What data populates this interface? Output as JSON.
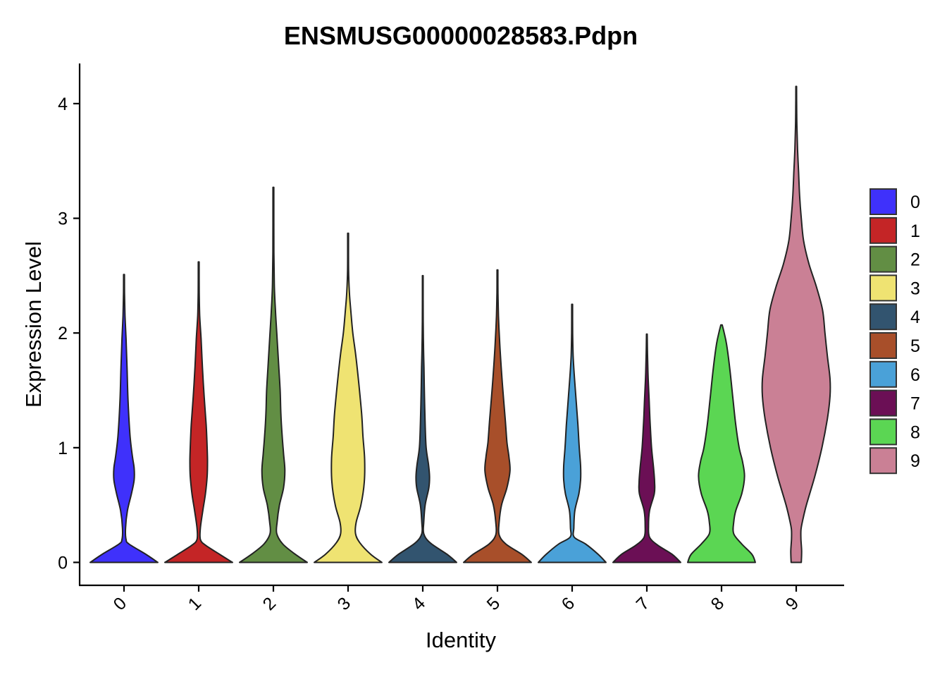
{
  "chart_data": {
    "type": "violin",
    "title": "ENSMUSG00000028583.Pdpn",
    "xlabel": "Identity",
    "ylabel": "Expression Level",
    "ylim": [
      -0.2,
      4.35
    ],
    "yticks": [
      0,
      1,
      2,
      3,
      4
    ],
    "categories": [
      "0",
      "1",
      "2",
      "3",
      "4",
      "5",
      "6",
      "7",
      "8",
      "9"
    ],
    "legend": {
      "position": "right",
      "title": ""
    },
    "grid": false,
    "colors": [
      "#3F31FB",
      "#C42526",
      "#628E44",
      "#EFE372",
      "#32546F",
      "#A84F2A",
      "#4AA1D8",
      "#6B0F55",
      "#5BD653",
      "#CA8095"
    ],
    "violins": [
      {
        "category": "0",
        "max": 2.51,
        "profile": [
          [
            0,
            1.0
          ],
          [
            0.07,
            0.65
          ],
          [
            0.16,
            0.15
          ],
          [
            0.2,
            0.06
          ],
          [
            0.3,
            0.045
          ],
          [
            0.45,
            0.1
          ],
          [
            0.6,
            0.22
          ],
          [
            0.72,
            0.3
          ],
          [
            0.82,
            0.3
          ],
          [
            0.92,
            0.25
          ],
          [
            1.1,
            0.18
          ],
          [
            1.4,
            0.12
          ],
          [
            1.7,
            0.09
          ],
          [
            1.95,
            0.06
          ],
          [
            2.15,
            0.03
          ],
          [
            2.35,
            0.015
          ],
          [
            2.51,
            0.012
          ]
        ]
      },
      {
        "category": "1",
        "max": 2.62,
        "profile": [
          [
            0,
            1.0
          ],
          [
            0.07,
            0.62
          ],
          [
            0.15,
            0.2
          ],
          [
            0.2,
            0.05
          ],
          [
            0.3,
            0.05
          ],
          [
            0.45,
            0.12
          ],
          [
            0.6,
            0.2
          ],
          [
            0.75,
            0.25
          ],
          [
            0.88,
            0.26
          ],
          [
            1.0,
            0.25
          ],
          [
            1.2,
            0.22
          ],
          [
            1.45,
            0.16
          ],
          [
            1.7,
            0.11
          ],
          [
            1.95,
            0.07
          ],
          [
            2.15,
            0.03
          ],
          [
            2.35,
            0.015
          ],
          [
            2.62,
            0.012
          ]
        ]
      },
      {
        "category": "2",
        "max": 3.27,
        "profile": [
          [
            0,
            1.0
          ],
          [
            0.07,
            0.65
          ],
          [
            0.16,
            0.28
          ],
          [
            0.25,
            0.1
          ],
          [
            0.35,
            0.11
          ],
          [
            0.5,
            0.18
          ],
          [
            0.65,
            0.3
          ],
          [
            0.8,
            0.34
          ],
          [
            0.95,
            0.3
          ],
          [
            1.1,
            0.26
          ],
          [
            1.3,
            0.22
          ],
          [
            1.5,
            0.2
          ],
          [
            1.7,
            0.16
          ],
          [
            2.0,
            0.1
          ],
          [
            2.2,
            0.06
          ],
          [
            2.4,
            0.03
          ],
          [
            2.7,
            0.015
          ],
          [
            3.27,
            0.012
          ]
        ]
      },
      {
        "category": "3",
        "max": 2.87,
        "profile": [
          [
            0,
            1.0
          ],
          [
            0.07,
            0.67
          ],
          [
            0.17,
            0.35
          ],
          [
            0.25,
            0.22
          ],
          [
            0.35,
            0.24
          ],
          [
            0.5,
            0.38
          ],
          [
            0.7,
            0.48
          ],
          [
            0.9,
            0.49
          ],
          [
            1.1,
            0.44
          ],
          [
            1.3,
            0.4
          ],
          [
            1.55,
            0.32
          ],
          [
            1.8,
            0.23
          ],
          [
            2.0,
            0.14
          ],
          [
            2.2,
            0.08
          ],
          [
            2.35,
            0.04
          ],
          [
            2.55,
            0.015
          ],
          [
            2.87,
            0.012
          ]
        ]
      },
      {
        "category": "4",
        "max": 2.5,
        "profile": [
          [
            0,
            1.0
          ],
          [
            0.07,
            0.72
          ],
          [
            0.17,
            0.22
          ],
          [
            0.25,
            0.03
          ],
          [
            0.35,
            0.03
          ],
          [
            0.5,
            0.07
          ],
          [
            0.65,
            0.18
          ],
          [
            0.75,
            0.2
          ],
          [
            0.85,
            0.17
          ],
          [
            1.0,
            0.1
          ],
          [
            1.2,
            0.07
          ],
          [
            1.45,
            0.05
          ],
          [
            1.7,
            0.035
          ],
          [
            1.9,
            0.02
          ],
          [
            2.1,
            0.012
          ],
          [
            2.5,
            0.01
          ]
        ]
      },
      {
        "category": "5",
        "max": 2.55,
        "profile": [
          [
            0,
            1.0
          ],
          [
            0.07,
            0.72
          ],
          [
            0.16,
            0.25
          ],
          [
            0.24,
            0.05
          ],
          [
            0.35,
            0.05
          ],
          [
            0.5,
            0.12
          ],
          [
            0.65,
            0.28
          ],
          [
            0.8,
            0.37
          ],
          [
            0.92,
            0.34
          ],
          [
            1.05,
            0.28
          ],
          [
            1.25,
            0.23
          ],
          [
            1.5,
            0.16
          ],
          [
            1.75,
            0.1
          ],
          [
            1.95,
            0.06
          ],
          [
            2.15,
            0.03
          ],
          [
            2.35,
            0.015
          ],
          [
            2.55,
            0.012
          ]
        ]
      },
      {
        "category": "6",
        "max": 2.25,
        "profile": [
          [
            0,
            1.0
          ],
          [
            0.07,
            0.77
          ],
          [
            0.16,
            0.4
          ],
          [
            0.22,
            0.06
          ],
          [
            0.3,
            0.05
          ],
          [
            0.45,
            0.08
          ],
          [
            0.6,
            0.2
          ],
          [
            0.72,
            0.25
          ],
          [
            0.84,
            0.25
          ],
          [
            1.0,
            0.21
          ],
          [
            1.2,
            0.17
          ],
          [
            1.4,
            0.12
          ],
          [
            1.6,
            0.07
          ],
          [
            1.8,
            0.03
          ],
          [
            2.0,
            0.015
          ],
          [
            2.25,
            0.012
          ]
        ]
      },
      {
        "category": "7",
        "max": 1.99,
        "profile": [
          [
            0,
            1.0
          ],
          [
            0.07,
            0.75
          ],
          [
            0.15,
            0.32
          ],
          [
            0.22,
            0.08
          ],
          [
            0.32,
            0.05
          ],
          [
            0.45,
            0.08
          ],
          [
            0.6,
            0.22
          ],
          [
            0.7,
            0.23
          ],
          [
            0.82,
            0.2
          ],
          [
            1.0,
            0.14
          ],
          [
            1.2,
            0.1
          ],
          [
            1.4,
            0.07
          ],
          [
            1.6,
            0.04
          ],
          [
            1.8,
            0.02
          ],
          [
            1.99,
            0.01
          ]
        ]
      },
      {
        "category": "8",
        "max": 2.07,
        "profile": [
          [
            0,
            1.0
          ],
          [
            0.07,
            0.9
          ],
          [
            0.16,
            0.6
          ],
          [
            0.25,
            0.36
          ],
          [
            0.35,
            0.36
          ],
          [
            0.45,
            0.42
          ],
          [
            0.6,
            0.6
          ],
          [
            0.75,
            0.68
          ],
          [
            0.88,
            0.62
          ],
          [
            1.0,
            0.52
          ],
          [
            1.2,
            0.42
          ],
          [
            1.45,
            0.33
          ],
          [
            1.7,
            0.24
          ],
          [
            1.9,
            0.15
          ],
          [
            2.0,
            0.08
          ],
          [
            2.07,
            0.02
          ]
        ]
      },
      {
        "category": "9",
        "max": 4.15,
        "profile": [
          [
            0,
            0.15
          ],
          [
            0.1,
            0.16
          ],
          [
            0.2,
            0.14
          ],
          [
            0.28,
            0.14
          ],
          [
            0.35,
            0.18
          ],
          [
            0.5,
            0.3
          ],
          [
            0.75,
            0.55
          ],
          [
            1.0,
            0.76
          ],
          [
            1.25,
            0.92
          ],
          [
            1.45,
            1.0
          ],
          [
            1.6,
            1.0
          ],
          [
            1.8,
            0.92
          ],
          [
            2.0,
            0.85
          ],
          [
            2.2,
            0.78
          ],
          [
            2.4,
            0.6
          ],
          [
            2.6,
            0.38
          ],
          [
            2.8,
            0.22
          ],
          [
            3.0,
            0.15
          ],
          [
            3.2,
            0.1
          ],
          [
            3.4,
            0.07
          ],
          [
            3.6,
            0.04
          ],
          [
            3.8,
            0.02
          ],
          [
            4.0,
            0.012
          ],
          [
            4.15,
            0.01
          ]
        ]
      }
    ]
  }
}
